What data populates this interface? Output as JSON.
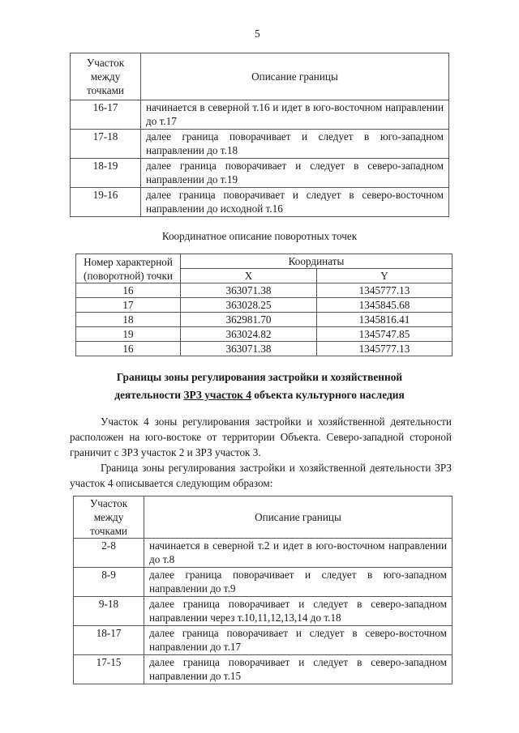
{
  "page_number": "5",
  "boundary_table_headers": {
    "segment": "Участок между точками",
    "description": "Описание границы"
  },
  "table1": [
    {
      "segment": "16-17",
      "description": "начинается в северной т.16 и идет в юго-восточном направлении до т.17"
    },
    {
      "segment": "17-18",
      "description": "далее граница поворачивает и следует в юго-западном направлении до т.18"
    },
    {
      "segment": "18-19",
      "description": "далее граница поворачивает и следует в северо-западном направлении до т.19"
    },
    {
      "segment": "19-16",
      "description": "далее граница поворачивает и следует в северо-восточном направлении до исходной т.16"
    }
  ],
  "coords_title": "Координатное описание поворотных точек",
  "coords_table": {
    "header_point": "Номер характерной (поворотной) точки",
    "header_coords": "Координаты",
    "header_x": "X",
    "header_y": "Y",
    "rows": [
      {
        "point": "16",
        "x": "363071.38",
        "y": "1345777.13"
      },
      {
        "point": "17",
        "x": "363028.25",
        "y": "1345845.68"
      },
      {
        "point": "18",
        "x": "362981.70",
        "y": "1345816.41"
      },
      {
        "point": "19",
        "x": "363024.82",
        "y": "1345747.85"
      },
      {
        "point": "16",
        "x": "363071.38",
        "y": "1345777.13"
      }
    ]
  },
  "section_heading": {
    "line1": "Границы зоны регулирования застройки и хозяйственной",
    "line2_before": "деятельности ",
    "line2_underlined": "ЗРЗ участок 4",
    "line2_after": " объекта культурного наследия"
  },
  "paragraph1": "Участок 4 зоны регулирования застройки и хозяйственной деятельности расположен на юго-востоке от территории Объекта. Северо-западной стороной граничит с ЗРЗ участок 2 и ЗРЗ участок 3.",
  "paragraph2": "Граница зоны регулирования застройки и хозяйственной деятельности ЗРЗ участок 4 описывается следующим образом:",
  "table2": [
    {
      "segment": "2-8",
      "description": "начинается в северной т.2 и идет в юго-восточном направлении до т.8"
    },
    {
      "segment": "8-9",
      "description": "далее граница поворачивает и следует в юго-западном направлении до т.9"
    },
    {
      "segment": "9-18",
      "description": "далее граница поворачивает и следует в северо-западном направлении через т.10,11,12,13,14 до т.18"
    },
    {
      "segment": "18-17",
      "description": "далее граница поворачивает и следует в северо-восточном направлении до т.17"
    },
    {
      "segment": "17-15",
      "description": "далее граница поворачивает и следует в северо-западном направлении до т.15"
    }
  ]
}
